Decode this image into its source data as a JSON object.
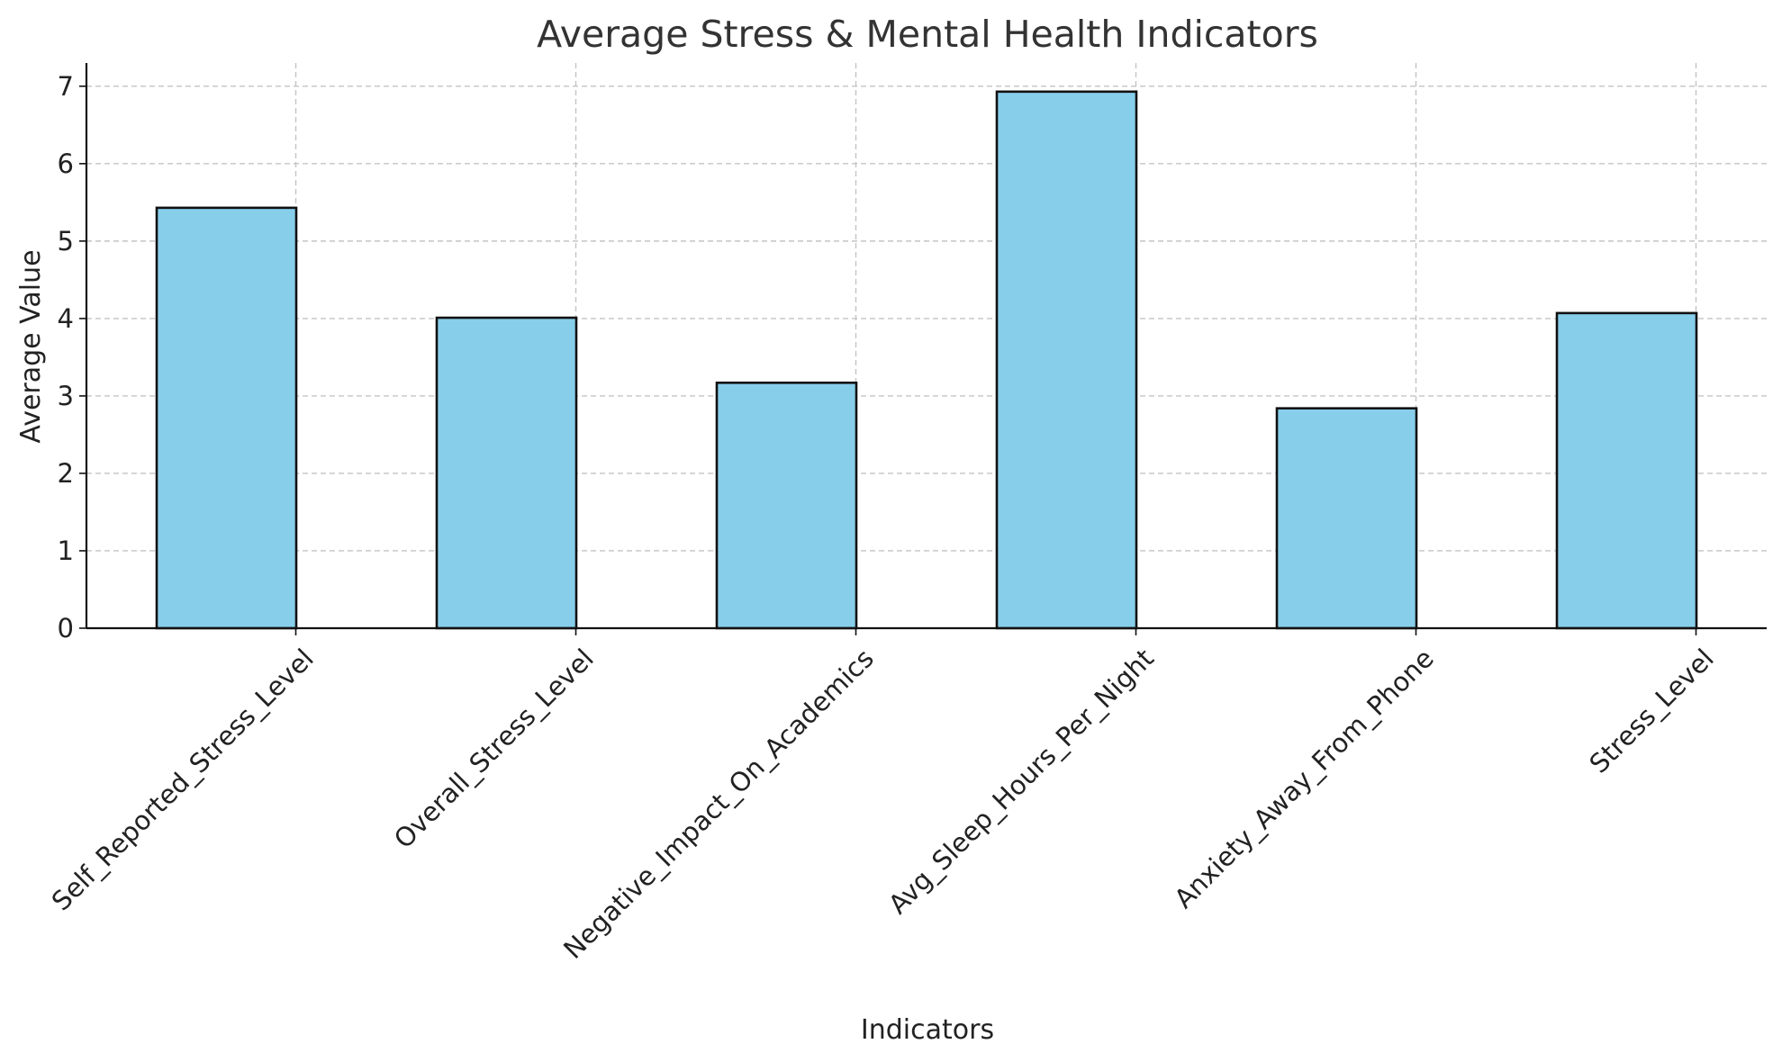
{
  "chart_data": {
    "type": "bar",
    "title": "Average Stress & Mental Health Indicators",
    "xlabel": "Indicators",
    "ylabel": "Average Value",
    "categories": [
      "Self_Reported_Stress_Level",
      "Overall_Stress_Level",
      "Negative_Impact_On_Academics",
      "Avg_Sleep_Hours_Per_Night",
      "Anxiety_Away_From_Phone",
      "Stress_Level"
    ],
    "values": [
      5.43,
      4.01,
      3.17,
      6.93,
      2.84,
      4.07
    ],
    "ylim": [
      0,
      7.3
    ],
    "yticks": [
      0,
      1,
      2,
      3,
      4,
      5,
      6,
      7
    ],
    "grid": true,
    "legend": "none",
    "tick_label_rotation_deg": 45,
    "colors": {
      "bar_fill": "#87ceeb",
      "bar_edge": "#111111",
      "grid": "#c4c4c4"
    }
  }
}
